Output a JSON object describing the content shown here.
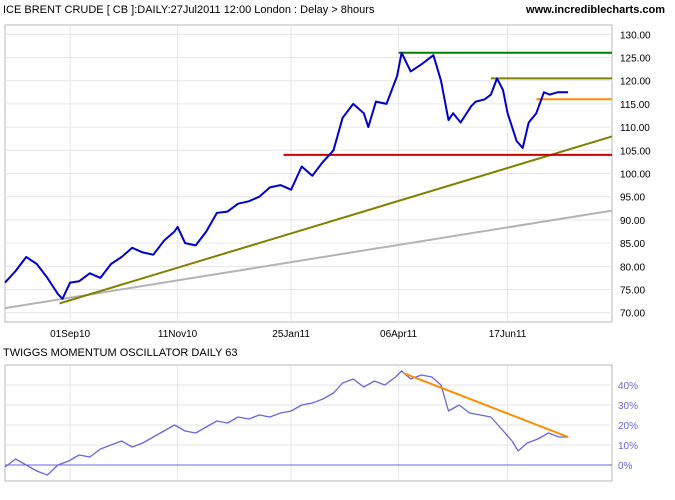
{
  "header": {
    "title": "ICE BRENT CRUDE [ CB ]:DAILY:27Jul2011 12:00 London  : Delay > 8hours",
    "watermark": "www.incrediblecharts.com"
  },
  "chart_data": [
    {
      "type": "line",
      "title": "ICE BRENT CRUDE [ CB ]:DAILY:27Jul2011 12:00 London  : Delay > 8hours",
      "xlabel": "",
      "ylabel": "",
      "grid": true,
      "x_ticks": [
        "01Sep10",
        "11Nov10",
        "25Jan11",
        "06Apr11",
        "17Jun11"
      ],
      "y_ticks": [
        "70.00",
        "75.00",
        "80.00",
        "85.00",
        "90.00",
        "95.00",
        "100.00",
        "105.00",
        "110.00",
        "115.00",
        "120.00",
        "125.00",
        "130.00"
      ],
      "ylim": [
        68,
        132
      ],
      "xlim": [
        "2010-07-20",
        "2011-08-25"
      ],
      "series": [
        {
          "color": "#0000cc",
          "points": [
            [
              "2010-07-20",
              76.5
            ],
            [
              "2010-07-27",
              79.0
            ],
            [
              "2010-08-03",
              82.0
            ],
            [
              "2010-08-10",
              80.5
            ],
            [
              "2010-08-17",
              77.5
            ],
            [
              "2010-08-24",
              74.0
            ],
            [
              "2010-08-27",
              73.0
            ],
            [
              "2010-09-01",
              76.5
            ],
            [
              "2010-09-07",
              76.8
            ],
            [
              "2010-09-14",
              78.5
            ],
            [
              "2010-09-21",
              77.5
            ],
            [
              "2010-09-28",
              80.5
            ],
            [
              "2010-10-05",
              82.0
            ],
            [
              "2010-10-12",
              84.0
            ],
            [
              "2010-10-19",
              83.0
            ],
            [
              "2010-10-26",
              82.5
            ],
            [
              "2010-11-02",
              85.5
            ],
            [
              "2010-11-09",
              87.5
            ],
            [
              "2010-11-11",
              88.5
            ],
            [
              "2010-11-16",
              85.0
            ],
            [
              "2010-11-23",
              84.5
            ],
            [
              "2010-11-30",
              87.5
            ],
            [
              "2010-12-07",
              91.5
            ],
            [
              "2010-12-14",
              91.8
            ],
            [
              "2010-12-21",
              93.5
            ],
            [
              "2010-12-28",
              94.0
            ],
            [
              "2011-01-04",
              95.0
            ],
            [
              "2011-01-11",
              97.0
            ],
            [
              "2011-01-18",
              97.5
            ],
            [
              "2011-01-25",
              96.5
            ],
            [
              "2011-02-01",
              101.5
            ],
            [
              "2011-02-08",
              99.5
            ],
            [
              "2011-02-15",
              102.5
            ],
            [
              "2011-02-22",
              105.0
            ],
            [
              "2011-02-28",
              112.0
            ],
            [
              "2011-03-07",
              115.0
            ],
            [
              "2011-03-14",
              113.0
            ],
            [
              "2011-03-17",
              110.0
            ],
            [
              "2011-03-22",
              115.5
            ],
            [
              "2011-03-29",
              115.0
            ],
            [
              "2011-04-05",
              121.0
            ],
            [
              "2011-04-08",
              126.0
            ],
            [
              "2011-04-14",
              122.0
            ],
            [
              "2011-04-21",
              123.5
            ],
            [
              "2011-04-29",
              125.5
            ],
            [
              "2011-05-04",
              120.0
            ],
            [
              "2011-05-09",
              111.5
            ],
            [
              "2011-05-12",
              113.0
            ],
            [
              "2011-05-17",
              111.0
            ],
            [
              "2011-05-24",
              114.5
            ],
            [
              "2011-05-27",
              115.5
            ],
            [
              "2011-06-02",
              116.0
            ],
            [
              "2011-06-06",
              117.0
            ],
            [
              "2011-06-10",
              120.5
            ],
            [
              "2011-06-14",
              118.0
            ],
            [
              "2011-06-17",
              113.0
            ],
            [
              "2011-06-23",
              107.0
            ],
            [
              "2011-06-27",
              105.5
            ],
            [
              "2011-07-01",
              111.0
            ],
            [
              "2011-07-06",
              113.0
            ],
            [
              "2011-07-11",
              117.5
            ],
            [
              "2011-07-15",
              117.0
            ],
            [
              "2011-07-20",
              117.5
            ],
            [
              "2011-07-27",
              117.5
            ]
          ]
        },
        {
          "color": "#808000",
          "points": [
            [
              "2010-08-25",
              72.0
            ],
            [
              "2011-08-25",
              108.0
            ]
          ]
        },
        {
          "color": "#b4b4b4",
          "points": [
            [
              "2010-07-20",
              71.0
            ],
            [
              "2011-08-25",
              92.0
            ]
          ]
        },
        {
          "color": "#cc0000",
          "points": [
            [
              "2011-01-20",
              104.0
            ],
            [
              "2011-08-25",
              104.0
            ]
          ]
        },
        {
          "color": "#008000",
          "points": [
            [
              "2011-04-06",
              126.0
            ],
            [
              "2011-08-25",
              126.0
            ]
          ]
        },
        {
          "color": "#808000",
          "points": [
            [
              "2011-06-06",
              120.5
            ],
            [
              "2011-08-25",
              120.5
            ]
          ]
        },
        {
          "color": "#ff8c00",
          "points": [
            [
              "2011-07-06",
              116.0
            ],
            [
              "2011-08-25",
              116.0
            ]
          ]
        }
      ]
    },
    {
      "type": "line",
      "title": "TWIGGS MOMENTUM OSCILLATOR DAILY 63",
      "xlabel": "",
      "ylabel": "",
      "grid": true,
      "y_ticks": [
        "0%",
        "10%",
        "20%",
        "30%",
        "40%"
      ],
      "ylim": [
        -8,
        50
      ],
      "xlim": [
        "2010-07-20",
        "2011-08-25"
      ],
      "series": [
        {
          "color": "#6a66e0",
          "points": [
            [
              "2010-07-20",
              -1.0
            ],
            [
              "2010-07-27",
              3.0
            ],
            [
              "2010-08-03",
              0.0
            ],
            [
              "2010-08-10",
              -3.0
            ],
            [
              "2010-08-17",
              -5.0
            ],
            [
              "2010-08-24",
              0.0
            ],
            [
              "2010-08-31",
              2.0
            ],
            [
              "2010-09-07",
              5.0
            ],
            [
              "2010-09-14",
              4.0
            ],
            [
              "2010-09-21",
              8.0
            ],
            [
              "2010-09-28",
              10.0
            ],
            [
              "2010-10-05",
              12.0
            ],
            [
              "2010-10-12",
              9.0
            ],
            [
              "2010-10-19",
              11.0
            ],
            [
              "2010-10-26",
              14.0
            ],
            [
              "2010-11-02",
              17.0
            ],
            [
              "2010-11-09",
              20.0
            ],
            [
              "2010-11-16",
              17.0
            ],
            [
              "2010-11-23",
              16.0
            ],
            [
              "2010-11-30",
              19.0
            ],
            [
              "2010-12-07",
              22.0
            ],
            [
              "2010-12-14",
              21.0
            ],
            [
              "2010-12-21",
              24.0
            ],
            [
              "2010-12-28",
              23.0
            ],
            [
              "2011-01-04",
              25.0
            ],
            [
              "2011-01-11",
              24.0
            ],
            [
              "2011-01-18",
              26.0
            ],
            [
              "2011-01-25",
              27.0
            ],
            [
              "2011-02-01",
              30.0
            ],
            [
              "2011-02-08",
              31.0
            ],
            [
              "2011-02-15",
              33.0
            ],
            [
              "2011-02-22",
              36.0
            ],
            [
              "2011-02-28",
              41.0
            ],
            [
              "2011-03-07",
              43.0
            ],
            [
              "2011-03-14",
              39.0
            ],
            [
              "2011-03-21",
              42.0
            ],
            [
              "2011-03-28",
              40.0
            ],
            [
              "2011-04-04",
              44.0
            ],
            [
              "2011-04-08",
              47.0
            ],
            [
              "2011-04-14",
              43.0
            ],
            [
              "2011-04-21",
              45.0
            ],
            [
              "2011-04-28",
              44.0
            ],
            [
              "2011-05-04",
              40.0
            ],
            [
              "2011-05-09",
              27.0
            ],
            [
              "2011-05-16",
              30.0
            ],
            [
              "2011-05-23",
              26.0
            ],
            [
              "2011-05-30",
              25.0
            ],
            [
              "2011-06-06",
              24.0
            ],
            [
              "2011-06-13",
              18.0
            ],
            [
              "2011-06-20",
              12.0
            ],
            [
              "2011-06-24",
              7.0
            ],
            [
              "2011-06-30",
              11.0
            ],
            [
              "2011-07-07",
              13.0
            ],
            [
              "2011-07-14",
              16.0
            ],
            [
              "2011-07-21",
              14.0
            ],
            [
              "2011-07-27",
              14.0
            ]
          ]
        },
        {
          "color": "#ff8c00",
          "points": [
            [
              "2011-04-09",
              46.0
            ],
            [
              "2011-07-27",
              14.0
            ]
          ]
        }
      ]
    }
  ]
}
